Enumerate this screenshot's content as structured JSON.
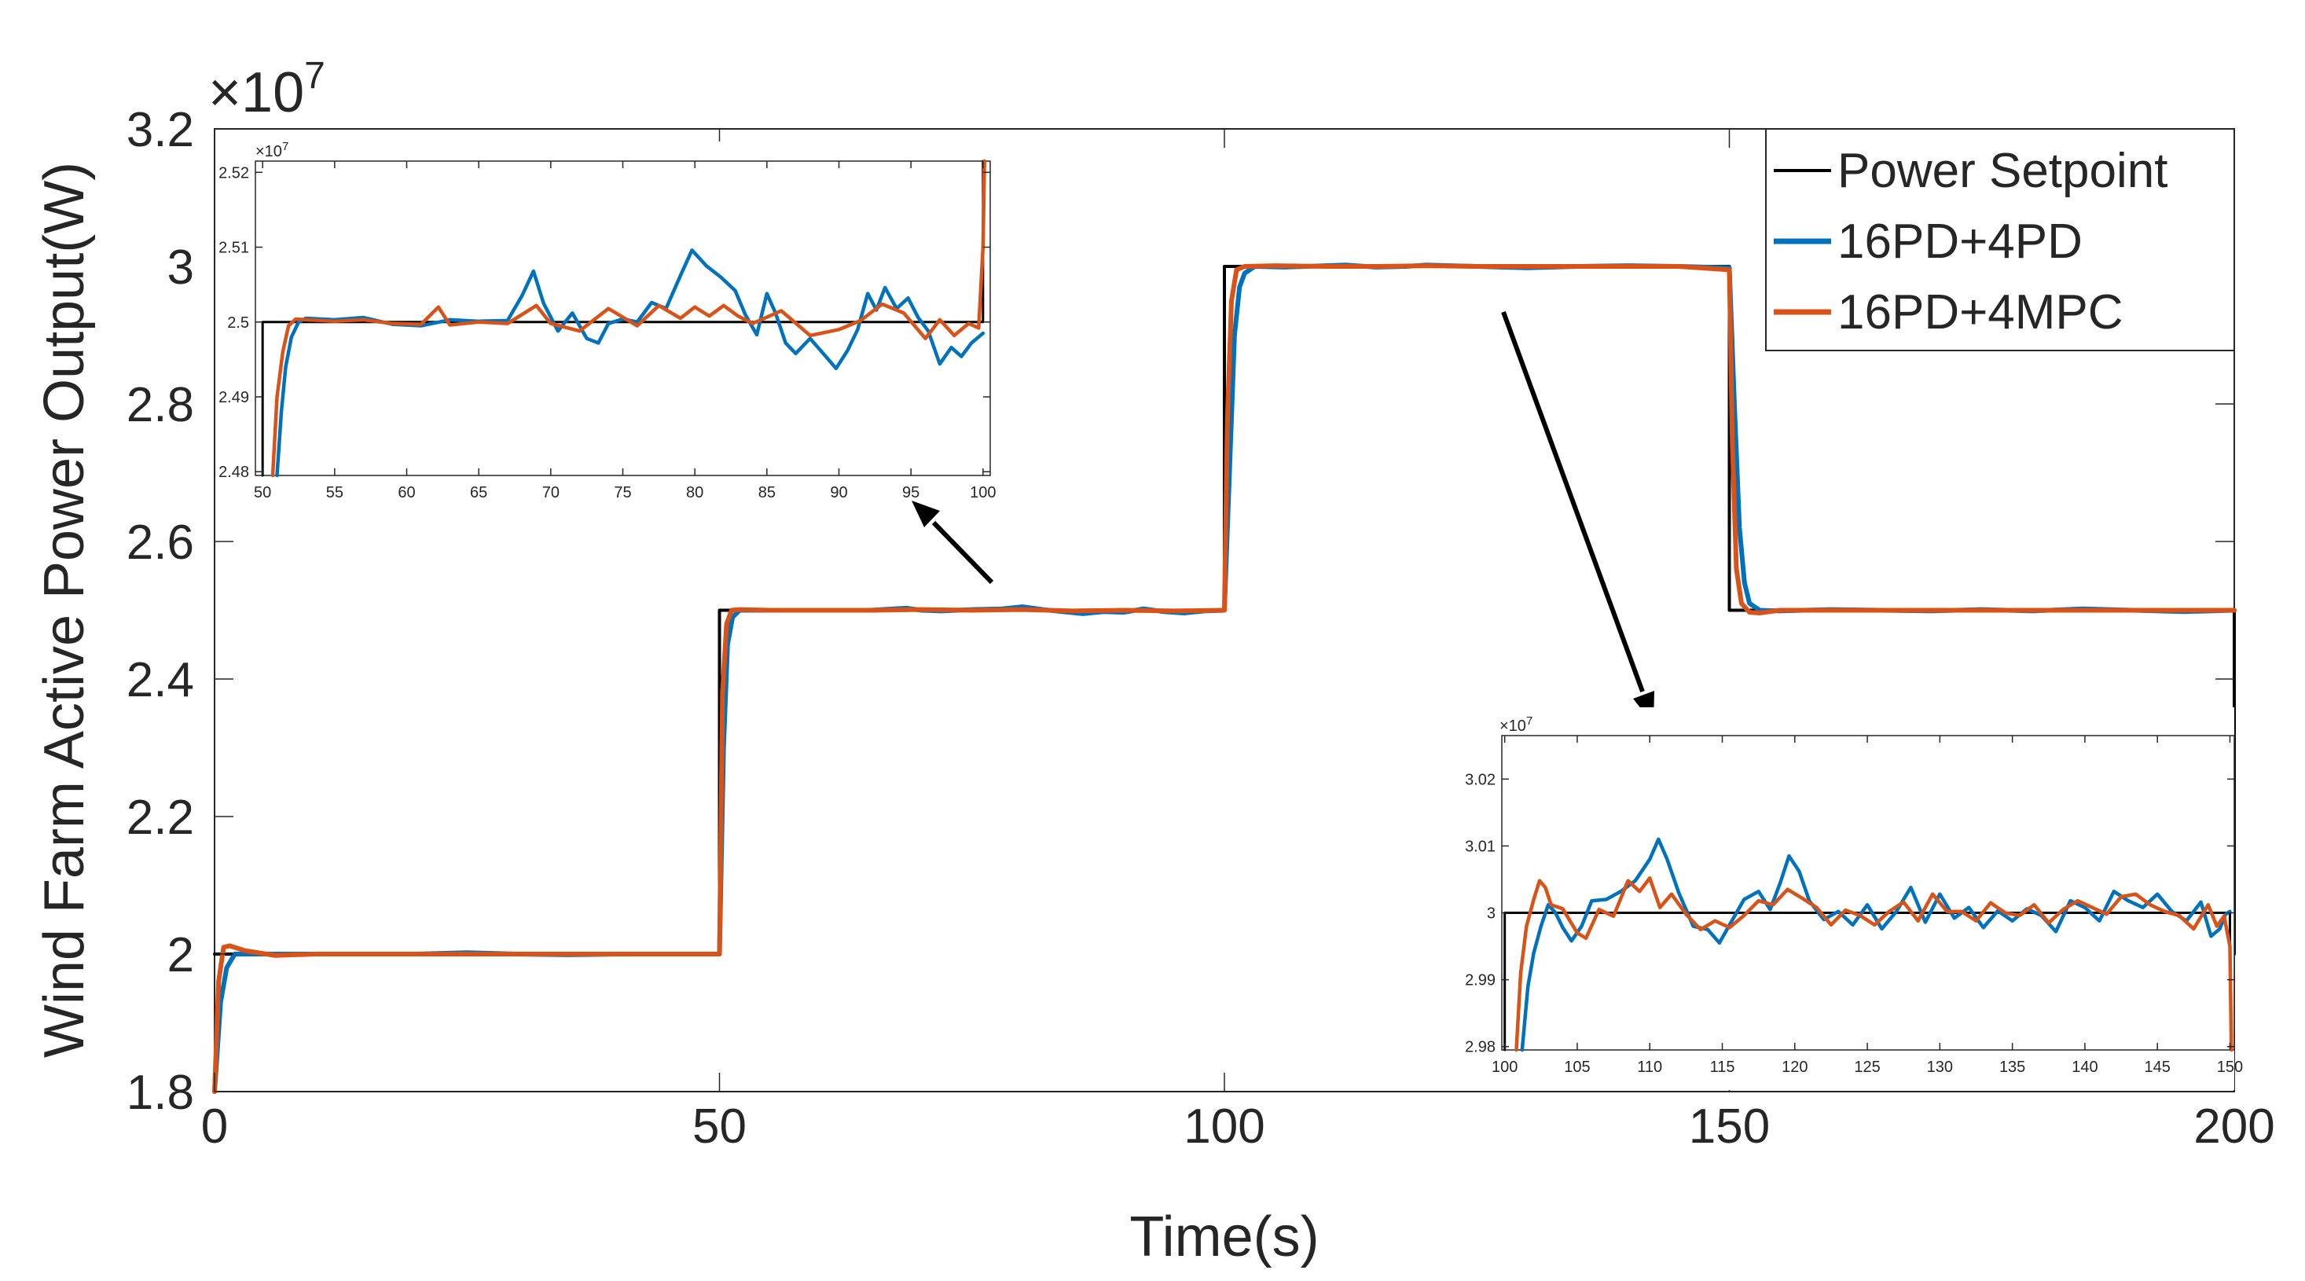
{
  "colors": {
    "setpoint": "#000000",
    "pd": "#0072BD",
    "mpc": "#D95319",
    "axis": "#262626",
    "background": "#ffffff"
  },
  "chart_data": [
    {
      "id": "main",
      "type": "line",
      "title": "",
      "xlabel": "Time(s)",
      "ylabel": "Wind Farm Active Power Output(W)",
      "exponent_label": "×10",
      "exponent": "7",
      "xlim": [
        0,
        200
      ],
      "ylim": [
        1.8,
        3.2
      ],
      "xticks": [
        0,
        50,
        100,
        150,
        200
      ],
      "xtick_labels": [
        "0",
        "50",
        "100",
        "150",
        "200"
      ],
      "yticks": [
        1.8,
        2.0,
        2.2,
        2.4,
        2.6,
        2.8,
        3.0,
        3.2
      ],
      "ytick_labels": [
        "1.8",
        "2",
        "2.2",
        "2.4",
        "2.6",
        "2.8",
        "3",
        "3.2"
      ],
      "grid": false,
      "legend": {
        "location": "top-right",
        "entries": [
          "Power Setpoint",
          "16PD+4PD",
          "16PD+4MPC"
        ]
      },
      "series": [
        {
          "name": "Power Setpoint",
          "x": [
            0,
            50,
            50,
            100,
            100,
            150,
            150,
            200,
            200
          ],
          "y": [
            2.0,
            2.0,
            2.5,
            2.5,
            3.0,
            3.0,
            2.5,
            2.5,
            2.0
          ]
        },
        {
          "name": "16PD+4PD",
          "x": [
            0,
            0.6,
            1.2,
            2,
            4,
            8,
            12,
            16,
            20,
            25,
            30,
            35,
            40,
            45,
            50,
            50.4,
            50.8,
            51.3,
            52,
            55,
            60,
            65,
            68.5,
            70,
            72,
            75,
            78,
            80,
            82,
            84,
            86,
            88,
            90,
            92,
            94,
            96,
            98,
            100,
            100.5,
            101,
            101.5,
            102,
            103,
            106,
            110,
            112,
            115,
            118,
            120,
            125,
            130,
            135,
            140,
            145,
            150,
            150.5,
            151,
            151.5,
            152,
            153,
            155,
            160,
            165,
            170,
            175,
            180,
            185,
            190,
            195,
            200
          ],
          "y": [
            1.8,
            1.93,
            1.98,
            2.0,
            2.0,
            2.0,
            2.0,
            2.0,
            2.0,
            2.002,
            2.0,
            1.999,
            2.0,
            2.0,
            2.0,
            2.3,
            2.45,
            2.49,
            2.5,
            2.5,
            2.5,
            2.5,
            2.503,
            2.5,
            2.499,
            2.501,
            2.502,
            2.505,
            2.501,
            2.498,
            2.495,
            2.498,
            2.497,
            2.502,
            2.498,
            2.496,
            2.499,
            2.5,
            2.7,
            2.9,
            2.97,
            2.99,
            3.0,
            2.999,
            3.001,
            3.002,
            2.999,
            3.0,
            3.002,
            3.0,
            2.998,
            3.0,
            3.001,
            3.0,
            2.998,
            2.8,
            2.62,
            2.54,
            2.51,
            2.5,
            2.499,
            2.501,
            2.5,
            2.499,
            2.501,
            2.499,
            2.502,
            2.5,
            2.498,
            2.5
          ]
        },
        {
          "name": "16PD+4MPC",
          "x": [
            0,
            0.4,
            0.9,
            1.5,
            3,
            6,
            10,
            15,
            20,
            25,
            30,
            35,
            40,
            45,
            50,
            50.3,
            50.7,
            51.2,
            52,
            55,
            60,
            65,
            70,
            75,
            80,
            85,
            90,
            95,
            100,
            100.3,
            100.7,
            101.2,
            102,
            105,
            110,
            115,
            120,
            125,
            130,
            135,
            140,
            145,
            150,
            150.3,
            150.7,
            151.2,
            152,
            153,
            155,
            160,
            165,
            170,
            175,
            180,
            185,
            190,
            195,
            200
          ],
          "y": [
            1.8,
            1.96,
            2.01,
            2.012,
            2.005,
            1.998,
            2.0,
            2.0,
            2.0,
            2.0,
            2.0,
            2.0,
            2.0,
            2.0,
            2.0,
            2.38,
            2.48,
            2.5,
            2.501,
            2.5,
            2.5,
            2.5,
            2.501,
            2.5,
            2.501,
            2.499,
            2.5,
            2.499,
            2.5,
            2.78,
            2.95,
            2.995,
            3.0,
            3.001,
            3.0,
            3.0,
            3.001,
            3.0,
            3.0,
            3.0,
            3.0,
            3.0,
            2.995,
            2.74,
            2.56,
            2.51,
            2.497,
            2.496,
            2.5,
            2.5,
            2.5,
            2.5,
            2.5,
            2.5,
            2.5,
            2.5,
            2.5,
            2.5
          ]
        }
      ]
    },
    {
      "id": "inset-left",
      "type": "line",
      "exponent_label": "×10",
      "exponent": "7",
      "xlim": [
        49.5,
        100.5
      ],
      "ylim": [
        2.4795,
        2.5215
      ],
      "xticks": [
        50,
        55,
        60,
        65,
        70,
        75,
        80,
        85,
        90,
        95,
        100
      ],
      "xtick_labels": [
        "50",
        "55",
        "60",
        "65",
        "70",
        "75",
        "80",
        "85",
        "90",
        "95",
        "100"
      ],
      "yticks": [
        2.48,
        2.49,
        2.5,
        2.51,
        2.52
      ],
      "ytick_labels": [
        "2.48",
        "2.49",
        "2.5",
        "2.51",
        "2.52"
      ],
      "series": [
        {
          "name": "Power Setpoint",
          "x": [
            50,
            50,
            100,
            100
          ],
          "y": [
            2.4795,
            2.5,
            2.5,
            2.5215
          ]
        },
        {
          "name": "16PD+4PD",
          "x": [
            51,
            51.3,
            51.6,
            52,
            52.5,
            53,
            55,
            57,
            59,
            61,
            63,
            65,
            67,
            68,
            68.8,
            69.5,
            70.5,
            71.5,
            72.5,
            73.3,
            74,
            75,
            76,
            77,
            78,
            79,
            79.8,
            80.8,
            81.8,
            82.8,
            83.5,
            84.3,
            85,
            85.6,
            86.3,
            87,
            88,
            89,
            89.8,
            90.6,
            91.3,
            92,
            92.6,
            93.2,
            94,
            94.8,
            95.5,
            96.2,
            97,
            97.8,
            98.5,
            99.2,
            100
          ],
          "y": [
            2.4795,
            2.488,
            2.494,
            2.498,
            2.5,
            2.5005,
            2.5003,
            2.5006,
            2.4997,
            2.4995,
            2.5003,
            2.5001,
            2.5002,
            2.5035,
            2.5068,
            2.5025,
            2.4988,
            2.5012,
            2.4978,
            2.4972,
            2.4998,
            2.5004,
            2.5,
            2.5026,
            2.5018,
            2.5062,
            2.5096,
            2.5075,
            2.506,
            2.5042,
            2.501,
            2.4983,
            2.5038,
            2.5012,
            2.4972,
            2.4958,
            2.4978,
            2.4956,
            2.4938,
            2.4962,
            2.499,
            2.5038,
            2.5016,
            2.5046,
            2.5018,
            2.5032,
            2.5006,
            2.4988,
            2.4944,
            2.4966,
            2.4954,
            2.4972,
            2.4985
          ]
        },
        {
          "name": "16PD+4MPC",
          "x": [
            50.7,
            51,
            51.4,
            51.8,
            52.3,
            53,
            55,
            57,
            59,
            61,
            62.2,
            63,
            65,
            67,
            69,
            70,
            72,
            74,
            76,
            77.5,
            79,
            80,
            81,
            82,
            83,
            84,
            86,
            88,
            90,
            91.5,
            93,
            94.5,
            96,
            97,
            98,
            99,
            99.7,
            100,
            100.1
          ],
          "y": [
            2.4795,
            2.49,
            2.496,
            2.4995,
            2.5004,
            2.5003,
            2.5001,
            2.5003,
            2.4998,
            2.4997,
            2.502,
            2.4996,
            2.5,
            2.4998,
            2.5022,
            2.4998,
            2.4988,
            2.5018,
            2.4995,
            2.5022,
            2.5005,
            2.502,
            2.5008,
            2.5022,
            2.5008,
            2.4998,
            2.5015,
            2.4982,
            2.499,
            2.5002,
            2.5024,
            2.5012,
            2.4978,
            2.5003,
            2.4982,
            2.4998,
            2.4992,
            2.51,
            2.5215
          ]
        }
      ]
    },
    {
      "id": "inset-right",
      "type": "line",
      "exponent_label": "×10",
      "exponent": "7",
      "xlim": [
        99.8,
        150.3
      ],
      "ylim": [
        2.9795,
        3.0265
      ],
      "xticks": [
        100,
        105,
        110,
        115,
        120,
        125,
        130,
        135,
        140,
        145,
        150
      ],
      "xtick_labels": [
        "100",
        "105",
        "110",
        "115",
        "120",
        "125",
        "130",
        "135",
        "140",
        "145",
        "150"
      ],
      "yticks": [
        2.98,
        2.99,
        3.0,
        3.01,
        3.02
      ],
      "ytick_labels": [
        "2.98",
        "2.99",
        "3",
        "3.01",
        "3.02"
      ],
      "series": [
        {
          "name": "Power Setpoint",
          "x": [
            100,
            100,
            150,
            150
          ],
          "y": [
            2.9795,
            3.0,
            3.0,
            2.9935
          ]
        },
        {
          "name": "16PD+4PD",
          "x": [
            101.2,
            101.6,
            102,
            102.5,
            103,
            103.5,
            104,
            104.6,
            105.3,
            106,
            107,
            108,
            109,
            110,
            110.6,
            111.2,
            112,
            113,
            114,
            114.8,
            115.5,
            116.5,
            117.5,
            118.3,
            119,
            119.6,
            120.3,
            121,
            122,
            123,
            124,
            125,
            126,
            127,
            128,
            129,
            130,
            131,
            132,
            133,
            134,
            135,
            136,
            137,
            138,
            139,
            140,
            141,
            142,
            143,
            144,
            145,
            146,
            147,
            148,
            148.7,
            149.3,
            149.7,
            150
          ],
          "y": [
            2.9795,
            2.989,
            2.994,
            2.998,
            3.0012,
            3.0,
            2.9978,
            2.9958,
            2.998,
            3.0018,
            3.002,
            3.0032,
            3.0048,
            3.008,
            3.011,
            3.008,
            3.003,
            2.998,
            2.9975,
            2.9955,
            2.9982,
            3.002,
            3.0032,
            3.0005,
            3.0045,
            3.0085,
            3.0062,
            3.0018,
            2.999,
            3.0002,
            2.9982,
            3.0012,
            2.9976,
            3.0002,
            3.0038,
            2.9986,
            3.0028,
            2.9992,
            3.0008,
            2.9978,
            3.0003,
            2.9988,
            3.0006,
            2.9996,
            2.9972,
            3.0018,
            3.0008,
            2.9988,
            3.0032,
            3.0018,
            3.0008,
            3.0028,
            3.0002,
            2.9988,
            3.0016,
            2.9965,
            2.9976,
            2.9998,
            3.0002
          ]
        },
        {
          "name": "16PD+4MPC",
          "x": [
            100.8,
            101.1,
            101.5,
            102,
            102.4,
            102.8,
            103.2,
            104,
            105,
            105.6,
            106.5,
            107.5,
            108.5,
            109.3,
            110,
            110.7,
            111.5,
            112.5,
            113.5,
            114.5,
            115.5,
            116.5,
            117.5,
            118.5,
            119.5,
            120.5,
            121.5,
            122.5,
            123.5,
            124.5,
            125.5,
            126.5,
            127.5,
            128.5,
            129.5,
            130.5,
            131.5,
            132.5,
            133.5,
            134.5,
            135.5,
            136.5,
            137.5,
            138.5,
            139.5,
            140.5,
            141.5,
            142.5,
            143.5,
            144.5,
            145.5,
            146.5,
            147.5,
            148.5,
            149.1,
            149.6,
            150,
            150.1
          ],
          "y": [
            2.9795,
            2.991,
            2.998,
            3.002,
            3.0048,
            3.0038,
            3.0012,
            3.0006,
            2.997,
            2.9962,
            3.0005,
            2.9995,
            3.0048,
            3.0032,
            3.0052,
            3.0008,
            3.0028,
            2.9998,
            2.9975,
            2.9988,
            2.9978,
            2.9996,
            3.0018,
            3.0012,
            3.0035,
            3.0022,
            3.0008,
            2.9982,
            3.0004,
            2.9996,
            2.9982,
            3.0002,
            3.0016,
            2.9988,
            3.0028,
            3.0002,
            3.0002,
            2.9988,
            3.0015,
            3.0,
            2.9996,
            3.0012,
            2.9985,
            3.0005,
            3.0018,
            3.0008,
            2.9998,
            3.0024,
            3.0028,
            3.0012,
            3.0002,
            2.9996,
            2.9976,
            3.0012,
            2.998,
            2.9995,
            2.995,
            2.9795
          ]
        }
      ]
    }
  ]
}
